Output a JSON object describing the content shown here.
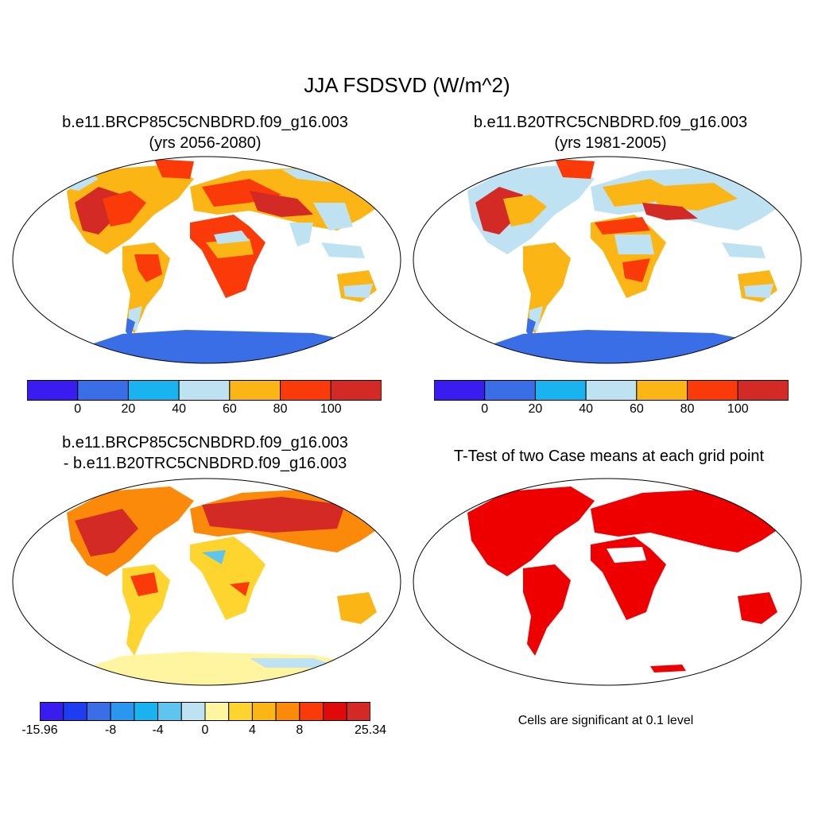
{
  "main_title": "JJA FSDSVD (W/m^2)",
  "panels": {
    "top_left": {
      "title_line1": "b.e11.BRCP85C5CNBDRD.f09_g16.003",
      "title_line2": "(yrs 2056-2080)",
      "colorbar": {
        "colors": [
          "#3a1cf0",
          "#3a6ee6",
          "#19b4f0",
          "#bfe2f2",
          "#fbb514",
          "#fb3a0a",
          "#d42a25"
        ],
        "labels": [
          "0",
          "20",
          "40",
          "60",
          "80",
          "100"
        ]
      }
    },
    "top_right": {
      "title_line1": "b.e11.B20TRC5CNBDRD.f09_g16.003",
      "title_line2": "(yrs 1981-2005)",
      "colorbar": {
        "colors": [
          "#3a1cf0",
          "#3a6ee6",
          "#19b4f0",
          "#bfe2f2",
          "#fbb514",
          "#fb3a0a",
          "#d42a25"
        ],
        "labels": [
          "0",
          "20",
          "40",
          "60",
          "80",
          "100"
        ]
      }
    },
    "bottom_left": {
      "title_line1": "b.e11.BRCP85C5CNBDRD.f09_g16.003",
      "title_line2": "- b.e11.B20TRC5CNBDRD.f09_g16.003",
      "colorbar": {
        "colors": [
          "#3a1cf0",
          "#1e3cf0",
          "#3a6ee6",
          "#2a96f0",
          "#19b4f0",
          "#5fc4ee",
          "#bfe2f2",
          "#fff5a0",
          "#fdd52e",
          "#fbb514",
          "#fb8a0a",
          "#fb3a0a",
          "#e10a0a",
          "#d42a25"
        ],
        "labels": [
          "-15.96",
          "-8",
          "-4",
          "0",
          "4",
          "8",
          "25.34"
        ]
      }
    },
    "bottom_right": {
      "title_line1": "T-Test of two Case means at each grid point",
      "note": "Cells are significant at 0.1 level"
    }
  }
}
